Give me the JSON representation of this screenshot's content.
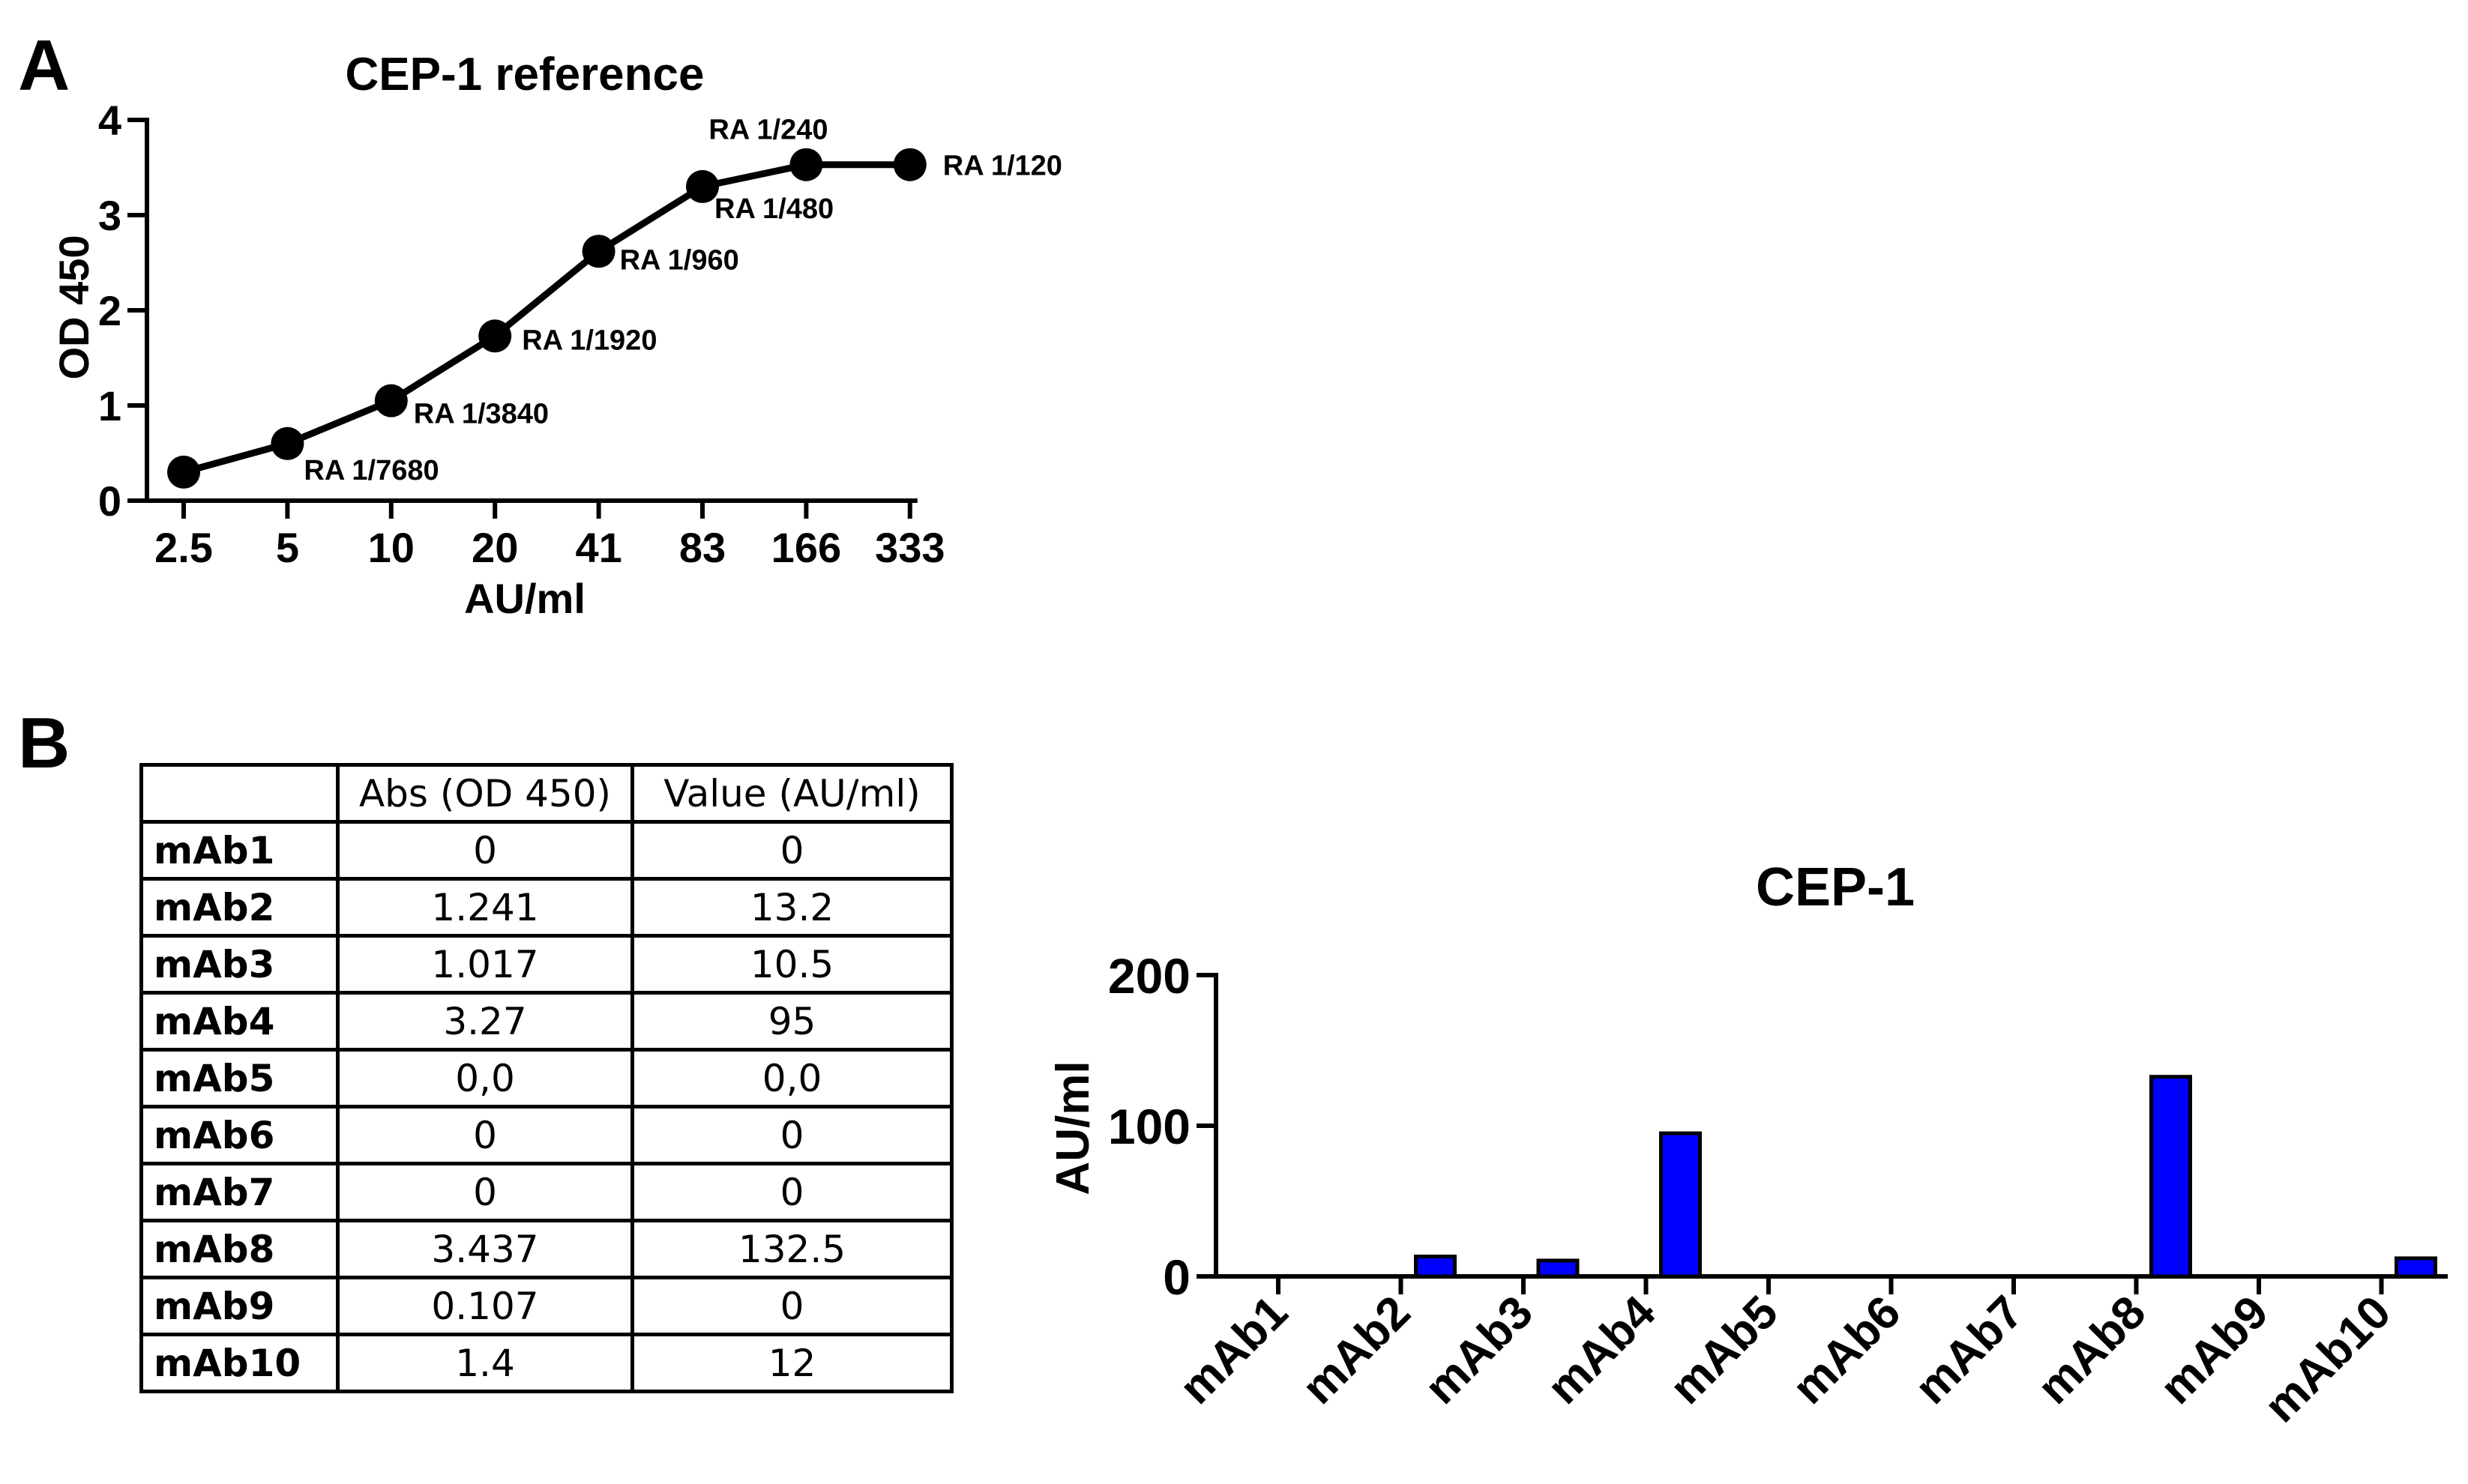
{
  "panels": {
    "a": "A",
    "b": "B"
  },
  "chart_data": [
    {
      "type": "line",
      "title": "CEP-1 reference",
      "xlabel": "AU/ml",
      "ylabel": "OD 450",
      "x_ticks": [
        "2.5",
        "5",
        "10",
        "20",
        "41",
        "83",
        "166",
        "333"
      ],
      "y_ticks": [
        "0",
        "1",
        "2",
        "3",
        "4"
      ],
      "ylim": [
        0,
        4
      ],
      "x_scale": "log2",
      "x": [
        2.5,
        5,
        10,
        20,
        41,
        83,
        166,
        333
      ],
      "y": [
        0.3,
        0.6,
        1.05,
        1.73,
        2.62,
        3.3,
        3.53,
        3.53
      ],
      "point_labels": [
        "",
        "RA 1/7680",
        "RA 1/3840",
        "RA 1/1920",
        "RA 1/960",
        "RA 1/480",
        "RA 1/240",
        "RA 1/120"
      ],
      "color": "#000000"
    },
    {
      "type": "table",
      "columns": [
        "",
        "Abs (OD 450)",
        "Value (AU/ml)"
      ],
      "rows": [
        [
          "mAb1",
          "0",
          "0"
        ],
        [
          "mAb2",
          "1.241",
          "13.2"
        ],
        [
          "mAb3",
          "1.017",
          "10.5"
        ],
        [
          "mAb4",
          "3.27",
          "95"
        ],
        [
          "mAb5",
          "0,0",
          "0,0"
        ],
        [
          "mAb6",
          "0",
          "0"
        ],
        [
          "mAb7",
          "0",
          "0"
        ],
        [
          "mAb8",
          "3.437",
          "132.5"
        ],
        [
          "mAb9",
          "0.107",
          "0"
        ],
        [
          "mAb10",
          "1.4",
          "12"
        ]
      ]
    },
    {
      "type": "bar",
      "title": "CEP-1",
      "xlabel": "",
      "ylabel": "AU/ml",
      "categories": [
        "mAb1",
        "mAb2",
        "mAb3",
        "mAb4",
        "mAb5",
        "mAb6",
        "mAb7",
        "mAb8",
        "mAb9",
        "mAb10"
      ],
      "values": [
        0,
        13.2,
        10.5,
        95,
        0,
        0,
        0,
        132.5,
        0,
        12
      ],
      "y_ticks": [
        "0",
        "100",
        "200"
      ],
      "ylim": [
        0,
        200
      ],
      "bar_color": "#0000ff",
      "edge_color": "#000000"
    }
  ]
}
